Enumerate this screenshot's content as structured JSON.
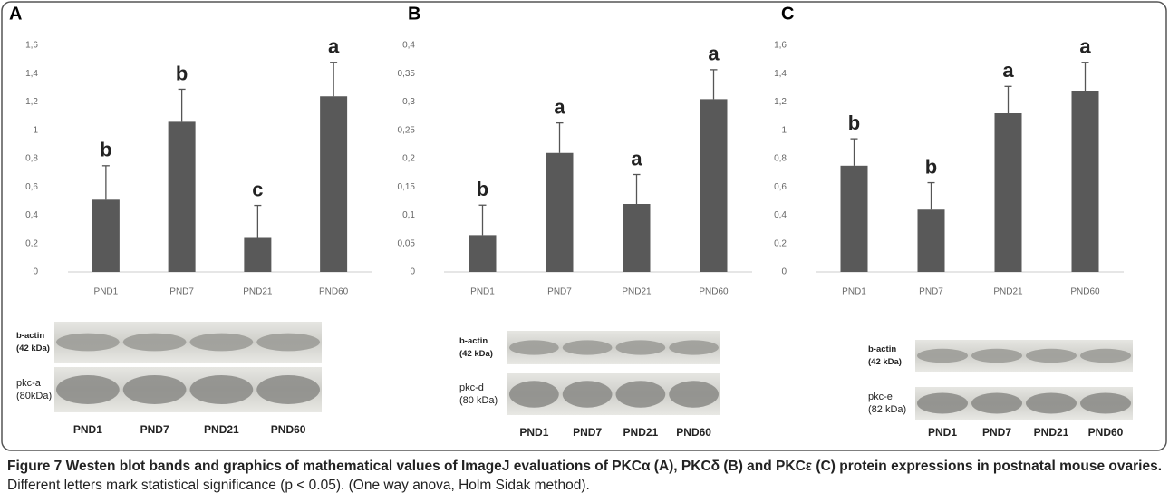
{
  "chart_data": [
    {
      "type": "bar",
      "panel": "A",
      "color": "#595959",
      "categories": [
        "PND1",
        "PND7",
        "PND21",
        "PND60"
      ],
      "values": [
        0.51,
        1.06,
        0.24,
        1.24
      ],
      "errors": [
        0.24,
        0.23,
        0.23,
        0.24
      ],
      "letters": [
        "b",
        "b",
        "c",
        "a"
      ],
      "ylim": [
        0,
        1.6
      ],
      "yticks": [
        0,
        {
          "value": 0.2,
          "label": "0,2"
        },
        {
          "value": 0.4,
          "label": "0,4"
        },
        {
          "value": 0.6,
          "label": "0,6"
        },
        {
          "value": 0.8,
          "label": "0,8"
        },
        1,
        {
          "value": 1.2,
          "label": "1,2"
        },
        {
          "value": 1.4,
          "label": "1,4"
        },
        {
          "value": 1.6,
          "label": "1,6"
        }
      ],
      "blot_rows": [
        [
          "b-actin",
          "(42 kDa)"
        ],
        [
          "pkc-a",
          "(80kDa)"
        ]
      ],
      "blot_lanes": [
        "PND1",
        "PND7",
        "PND21",
        "PND60"
      ]
    },
    {
      "type": "bar",
      "panel": "B",
      "color": "#595959",
      "categories": [
        "PND1",
        "PND7",
        "PND21",
        "PND60"
      ],
      "values": [
        0.065,
        0.21,
        0.12,
        0.305
      ],
      "errors": [
        0.053,
        0.053,
        0.052,
        0.052
      ],
      "letters": [
        "b",
        "a",
        "a",
        "a"
      ],
      "ylim": [
        0,
        0.4
      ],
      "yticks": [
        0,
        {
          "value": 0.05,
          "label": "0,05"
        },
        {
          "value": 0.1,
          "label": "0,1"
        },
        {
          "value": 0.15,
          "label": "0,15"
        },
        {
          "value": 0.2,
          "label": "0,2"
        },
        {
          "value": 0.25,
          "label": "0,25"
        },
        {
          "value": 0.3,
          "label": "0,3"
        },
        {
          "value": 0.35,
          "label": "0,35"
        },
        {
          "value": 0.4,
          "label": "0,4"
        }
      ],
      "blot_rows": [
        [
          "b-actin",
          "(42 kDa)"
        ],
        [
          "pkc-d",
          "(80 kDa)"
        ]
      ],
      "blot_lanes": [
        "PND1",
        "PND7",
        "PND21",
        "PND60"
      ]
    },
    {
      "type": "bar",
      "panel": "C",
      "color": "#595959",
      "categories": [
        "PND1",
        "PND7",
        "PND21",
        "PND60"
      ],
      "values": [
        0.75,
        0.44,
        1.12,
        1.28
      ],
      "errors": [
        0.19,
        0.19,
        0.19,
        0.2
      ],
      "letters": [
        "b",
        "b",
        "a",
        "a"
      ],
      "ylim": [
        0,
        1.6
      ],
      "yticks": [
        0,
        {
          "value": 0.2,
          "label": "0,2"
        },
        {
          "value": 0.4,
          "label": "0,4"
        },
        {
          "value": 0.6,
          "label": "0,6"
        },
        {
          "value": 0.8,
          "label": "0,8"
        },
        1,
        {
          "value": 1.2,
          "label": "1,2"
        },
        {
          "value": 1.4,
          "label": "1,4"
        },
        {
          "value": 1.6,
          "label": "1,6"
        }
      ],
      "blot_rows": [
        [
          "b-actin",
          "(42 kDa)"
        ],
        [
          "pkc-e",
          "(82 kDa)"
        ]
      ],
      "blot_lanes": [
        "PND1",
        "PND7",
        "PND21",
        "PND60"
      ]
    }
  ],
  "caption": {
    "title": "Figure 7 Westen blot bands and graphics of mathematical values of ImageJ evaluations of PKCα (A), PKCδ (B) and PKCε (C) protein expressions in postnatal mouse ovaries.",
    "text": "Different letters mark statistical significance (p < 0.05). (One way anova, Holm Sidak method)."
  }
}
